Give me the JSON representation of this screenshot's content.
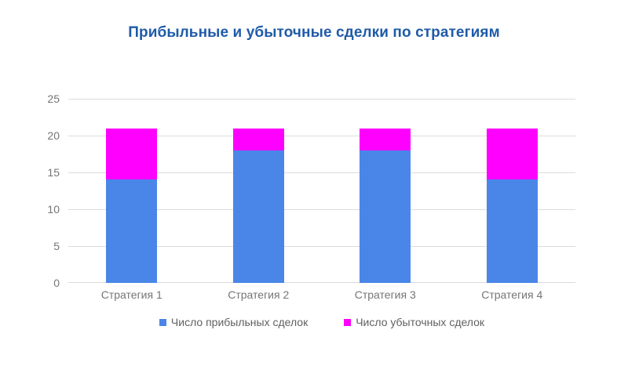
{
  "chart_data": {
    "type": "bar",
    "stacked": true,
    "title": "Прибыльные и убыточные сделки по стратегиям",
    "categories": [
      "Стратегия 1",
      "Стратегия 2",
      "Стратегия 3",
      "Стратегия 4"
    ],
    "series": [
      {
        "name": "Число прибыльных сделок",
        "values": [
          14,
          18,
          18,
          14
        ],
        "color": "#4a86e8"
      },
      {
        "name": "Число убыточных сделок",
        "values": [
          7,
          3,
          3,
          7
        ],
        "color": "#ff00ff"
      }
    ],
    "totals": [
      21,
      21,
      21,
      21
    ],
    "xlabel": "",
    "ylabel": "",
    "ylim": [
      0,
      25
    ],
    "yticks": [
      0,
      5,
      10,
      15,
      20,
      25
    ],
    "grid": true,
    "legend_position": "bottom",
    "colors": {
      "title": "#1f5ba8",
      "axis_text": "#757575",
      "legend_text": "#616161",
      "gridline": "#dcdcdc",
      "background": "#ffffff"
    }
  }
}
